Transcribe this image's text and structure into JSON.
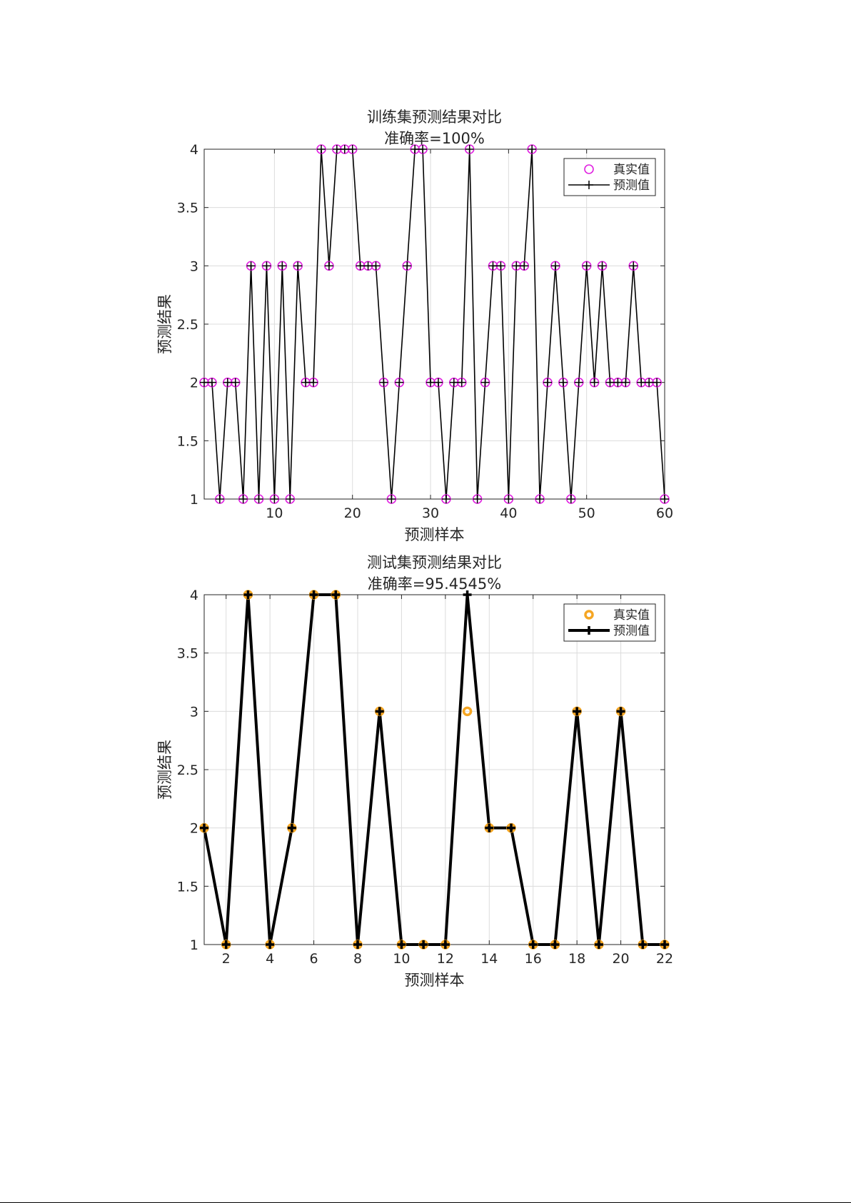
{
  "chart_data": [
    {
      "type": "line",
      "title": "训练集预测结果对比",
      "subtitle": "准确率=100%",
      "xlabel": "预测样本",
      "ylabel": "预测结果",
      "xlim": [
        1,
        60
      ],
      "ylim": [
        1,
        4
      ],
      "x_ticks": [
        10,
        20,
        30,
        40,
        50,
        60
      ],
      "y_ticks": [
        1,
        1.5,
        2,
        2.5,
        3,
        3.5,
        4
      ],
      "grid": true,
      "legend_position": "top-right",
      "colors": {
        "true": "#e022e0",
        "pred": "#000000"
      },
      "line_width": "thin",
      "series": [
        {
          "name": "真实值",
          "marker": "circle",
          "values": [
            2,
            2,
            1,
            2,
            2,
            1,
            3,
            1,
            3,
            1,
            3,
            1,
            3,
            2,
            2,
            4,
            3,
            4,
            4,
            4,
            3,
            3,
            3,
            2,
            1,
            2,
            3,
            4,
            4,
            2,
            2,
            1,
            2,
            2,
            4,
            1,
            2,
            3,
            3,
            1,
            3,
            3,
            4,
            1,
            2,
            3,
            2,
            1,
            2,
            3,
            2,
            3,
            2,
            2,
            2,
            3,
            2,
            2,
            2,
            1
          ]
        },
        {
          "name": "预测值",
          "marker": "plus",
          "values": [
            2,
            2,
            1,
            2,
            2,
            1,
            3,
            1,
            3,
            1,
            3,
            1,
            3,
            2,
            2,
            4,
            3,
            4,
            4,
            4,
            3,
            3,
            3,
            2,
            1,
            2,
            3,
            4,
            4,
            2,
            2,
            1,
            2,
            2,
            4,
            1,
            2,
            3,
            3,
            1,
            3,
            3,
            4,
            1,
            2,
            3,
            2,
            1,
            2,
            3,
            2,
            3,
            2,
            2,
            2,
            3,
            2,
            2,
            2,
            1
          ]
        }
      ]
    },
    {
      "type": "line",
      "title": "测试集预测结果对比",
      "subtitle": "准确率=95.4545%",
      "xlabel": "预测样本",
      "ylabel": "预测结果",
      "xlim": [
        1,
        22
      ],
      "ylim": [
        1,
        4
      ],
      "x_ticks": [
        2,
        4,
        6,
        8,
        10,
        12,
        14,
        16,
        18,
        20,
        22
      ],
      "y_ticks": [
        1,
        1.5,
        2,
        2.5,
        3,
        3.5,
        4
      ],
      "grid": true,
      "legend_position": "top-right",
      "colors": {
        "true": "#f5a623",
        "pred": "#000000"
      },
      "line_width": "thick",
      "series": [
        {
          "name": "真实值",
          "marker": "circle",
          "values": [
            2,
            1,
            4,
            1,
            2,
            4,
            4,
            1,
            3,
            1,
            1,
            1,
            3,
            2,
            2,
            1,
            1,
            3,
            1,
            3,
            1,
            1
          ]
        },
        {
          "name": "预测值",
          "marker": "plus",
          "values": [
            2,
            1,
            4,
            1,
            2,
            4,
            4,
            1,
            3,
            1,
            1,
            1,
            4,
            2,
            2,
            1,
            1,
            3,
            1,
            3,
            1,
            1
          ]
        }
      ]
    }
  ]
}
